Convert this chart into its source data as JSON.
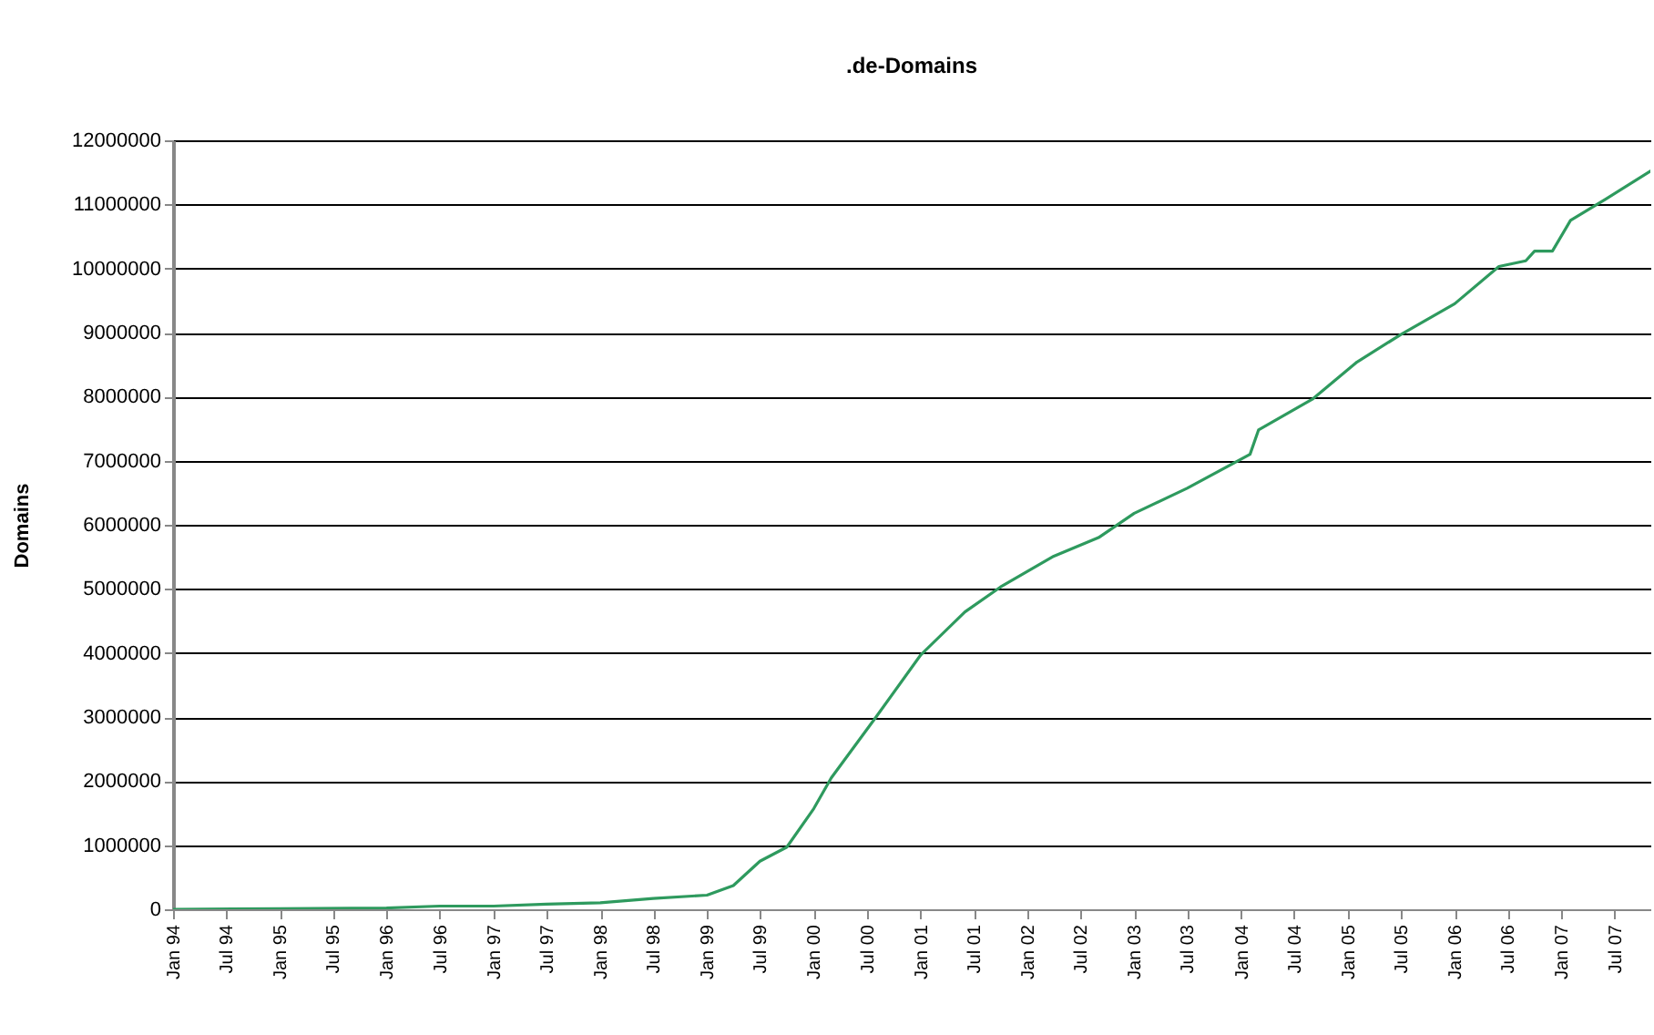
{
  "chart_data": {
    "type": "line",
    "title": ".de-Domains",
    "ylabel": "Domains",
    "x": [
      "1994-01",
      "1995-01",
      "1996-01",
      "1996-07",
      "1997-01",
      "1997-07",
      "1998-01",
      "1998-07",
      "1999-01",
      "1999-04",
      "1999-07",
      "1999-10",
      "2000-01",
      "2000-03",
      "2000-08",
      "2001-01",
      "2001-06",
      "2001-10",
      "2002-04",
      "2002-09",
      "2003-01",
      "2003-07",
      "2004-02",
      "2004-03",
      "2004-09",
      "2005-02",
      "2005-07",
      "2006-01",
      "2006-06",
      "2006-09",
      "2006-10",
      "2006-12",
      "2007-02",
      "2007-06",
      "2007-11"
    ],
    "series": [
      {
        "color": "#2e9a5e",
        "values": [
          0,
          10000,
          20000,
          50000,
          50000,
          80000,
          100000,
          170000,
          220000,
          370000,
          750000,
          970000,
          1570000,
          2050000,
          3000000,
          3970000,
          4640000,
          5030000,
          5510000,
          5800000,
          6180000,
          6570000,
          7100000,
          7480000,
          7960000,
          8540000,
          8970000,
          9450000,
          10030000,
          10120000,
          10270000,
          10270000,
          10750000,
          11080000,
          11520000
        ]
      }
    ],
    "xlim": [
      "1994-01",
      "2007-11"
    ],
    "xticks": [
      {
        "value": "1994-01",
        "label": "Jan 94"
      },
      {
        "value": "1994-07",
        "label": "Jul 94"
      },
      {
        "value": "1995-01",
        "label": "Jan 95"
      },
      {
        "value": "1995-07",
        "label": "Jul 95"
      },
      {
        "value": "1996-01",
        "label": "Jan 96"
      },
      {
        "value": "1996-07",
        "label": "Jul 96"
      },
      {
        "value": "1997-01",
        "label": "Jan 97"
      },
      {
        "value": "1997-07",
        "label": "Jul 97"
      },
      {
        "value": "1998-01",
        "label": "Jan 98"
      },
      {
        "value": "1998-07",
        "label": "Jul 98"
      },
      {
        "value": "1999-01",
        "label": "Jan 99"
      },
      {
        "value": "1999-07",
        "label": "Jul 99"
      },
      {
        "value": "2000-01",
        "label": "Jan 00"
      },
      {
        "value": "2000-07",
        "label": "Jul 00"
      },
      {
        "value": "2001-01",
        "label": "Jan 01"
      },
      {
        "value": "2001-07",
        "label": "Jul 01"
      },
      {
        "value": "2002-01",
        "label": "Jan 02"
      },
      {
        "value": "2002-07",
        "label": "Jul 02"
      },
      {
        "value": "2003-01",
        "label": "Jan 03"
      },
      {
        "value": "2003-07",
        "label": "Jul 03"
      },
      {
        "value": "2004-01",
        "label": "Jan 04"
      },
      {
        "value": "2004-07",
        "label": "Jul 04"
      },
      {
        "value": "2005-01",
        "label": "Jan 05"
      },
      {
        "value": "2005-07",
        "label": "Jul 05"
      },
      {
        "value": "2006-01",
        "label": "Jan 06"
      },
      {
        "value": "2006-07",
        "label": "Jul 06"
      },
      {
        "value": "2007-01",
        "label": "Jan 07"
      },
      {
        "value": "2007-07",
        "label": "Jul 07"
      }
    ],
    "ylim": [
      0,
      12000000
    ],
    "yticks": [
      0,
      1000000,
      2000000,
      3000000,
      4000000,
      5000000,
      6000000,
      7000000,
      8000000,
      9000000,
      10000000,
      11000000,
      12000000
    ],
    "grid": "y",
    "marker": "none",
    "line_style": "solid"
  }
}
